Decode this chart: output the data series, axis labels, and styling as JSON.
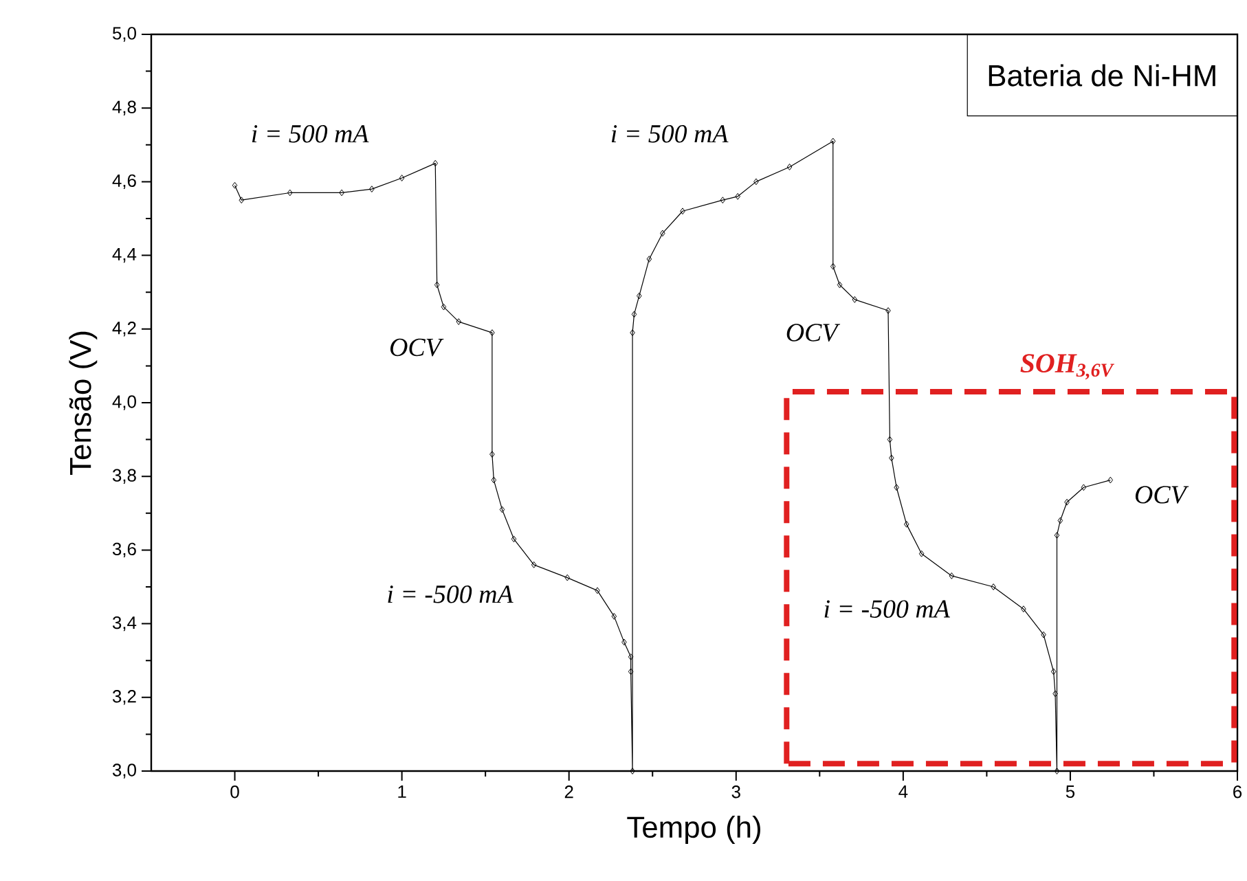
{
  "chart_data": {
    "type": "line",
    "xlabel": "Tempo (h)",
    "ylabel": "Tensão (V)",
    "xlim": [
      -0.5,
      6
    ],
    "ylim": [
      3.0,
      5.0
    ],
    "xticks": [
      0,
      1,
      2,
      3,
      4,
      5,
      6
    ],
    "yticks": [
      {
        "value": 3.0,
        "label": "3,0"
      },
      {
        "value": 3.2,
        "label": "3,2"
      },
      {
        "value": 3.4,
        "label": "3,4"
      },
      {
        "value": 3.6,
        "label": "3,6"
      },
      {
        "value": 3.8,
        "label": "3,8"
      },
      {
        "value": 4.0,
        "label": "4,0"
      },
      {
        "value": 4.2,
        "label": "4,2"
      },
      {
        "value": 4.4,
        "label": "4,4"
      },
      {
        "value": 4.6,
        "label": "4,6"
      },
      {
        "value": 4.8,
        "label": "4,8"
      },
      {
        "value": 5.0,
        "label": "5,0"
      }
    ],
    "marker": "diamond",
    "line_style": "solid",
    "series": [
      {
        "color": "#000000",
        "x": [
          0,
          0.04,
          0.33,
          0.64,
          0.82,
          1.0,
          1.2,
          1.21,
          1.25,
          1.34,
          1.54,
          1.54,
          1.55,
          1.6,
          1.67,
          1.79,
          1.99,
          2.17,
          2.27,
          2.33,
          2.37,
          2.37,
          2.38,
          2.38,
          2.39,
          2.42,
          2.48,
          2.56,
          2.68,
          2.92,
          3.01,
          3.12,
          3.32,
          3.58,
          3.58,
          3.62,
          3.71,
          3.91,
          3.92,
          3.93,
          3.96,
          4.02,
          4.11,
          4.29,
          4.54,
          4.72,
          4.84,
          4.9,
          4.91,
          4.92,
          4.92,
          4.94,
          4.98,
          5.08,
          5.24
        ],
        "values": [
          4.59,
          4.55,
          4.57,
          4.57,
          4.58,
          4.61,
          4.65,
          4.32,
          4.26,
          4.22,
          4.19,
          3.86,
          3.79,
          3.71,
          3.63,
          3.56,
          3.525,
          3.49,
          3.42,
          3.35,
          3.31,
          3.27,
          3.0,
          4.19,
          4.24,
          4.29,
          4.39,
          4.46,
          4.52,
          4.55,
          4.56,
          4.6,
          4.64,
          4.71,
          4.37,
          4.32,
          4.28,
          4.25,
          3.9,
          3.85,
          3.77,
          3.67,
          3.59,
          3.53,
          3.5,
          3.44,
          3.37,
          3.27,
          3.21,
          3.0,
          3.64,
          3.68,
          3.73,
          3.77,
          3.79
        ]
      }
    ],
    "annotations": [
      "i = 500 mA",
      "OCV",
      "i = -500 mA",
      "i = 500 mA",
      "OCV",
      "i = -500 mA",
      "OCV",
      "SOH$_{3,6V}$",
      "Bateria de Ni-HM"
    ]
  }
}
